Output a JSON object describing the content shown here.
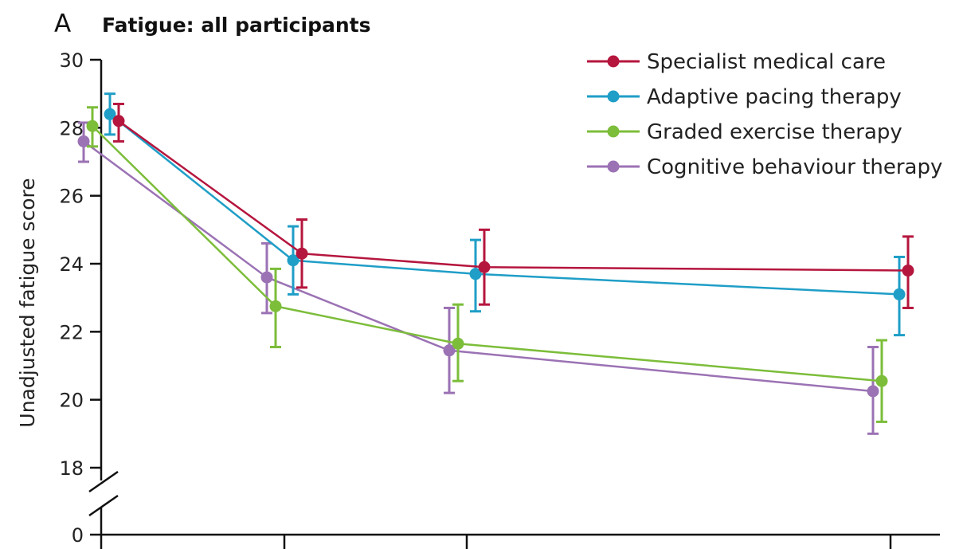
{
  "panel": {
    "letter": "A",
    "title": "Fatigue: all participants"
  },
  "chart_data": {
    "type": "line",
    "ylabel": "Unadjusted fatigue score",
    "ylim": [
      18,
      30
    ],
    "yticks": [
      "30",
      "28",
      "26",
      "24",
      "22",
      "20",
      "18",
      "0"
    ],
    "y_axis_break": true,
    "x_points": 4,
    "grid": false,
    "legend_position": "top-right",
    "series": [
      {
        "name": "Specialist medical care",
        "color": "#b5163e",
        "values": [
          28.2,
          24.3,
          23.9,
          23.8
        ],
        "ci_low": [
          27.6,
          23.3,
          22.8,
          22.7
        ],
        "ci_high": [
          28.7,
          25.3,
          25.0,
          24.8
        ]
      },
      {
        "name": "Adaptive pacing therapy",
        "color": "#1f9ec7",
        "values": [
          28.4,
          24.1,
          23.7,
          23.1
        ],
        "ci_low": [
          27.8,
          23.1,
          22.6,
          21.9
        ],
        "ci_high": [
          29.0,
          25.1,
          24.7,
          24.2
        ]
      },
      {
        "name": "Graded exercise therapy",
        "color": "#7cbd3a",
        "values": [
          28.05,
          22.75,
          21.65,
          20.55
        ],
        "ci_low": [
          27.45,
          21.55,
          20.55,
          19.35
        ],
        "ci_high": [
          28.6,
          23.85,
          22.8,
          21.75
        ]
      },
      {
        "name": "Cognitive behaviour therapy",
        "color": "#9b72b4",
        "values": [
          27.6,
          23.6,
          21.45,
          20.25
        ],
        "ci_low": [
          27.0,
          22.55,
          20.2,
          19.0
        ],
        "ci_high": [
          28.15,
          24.6,
          22.7,
          21.55
        ]
      }
    ]
  }
}
